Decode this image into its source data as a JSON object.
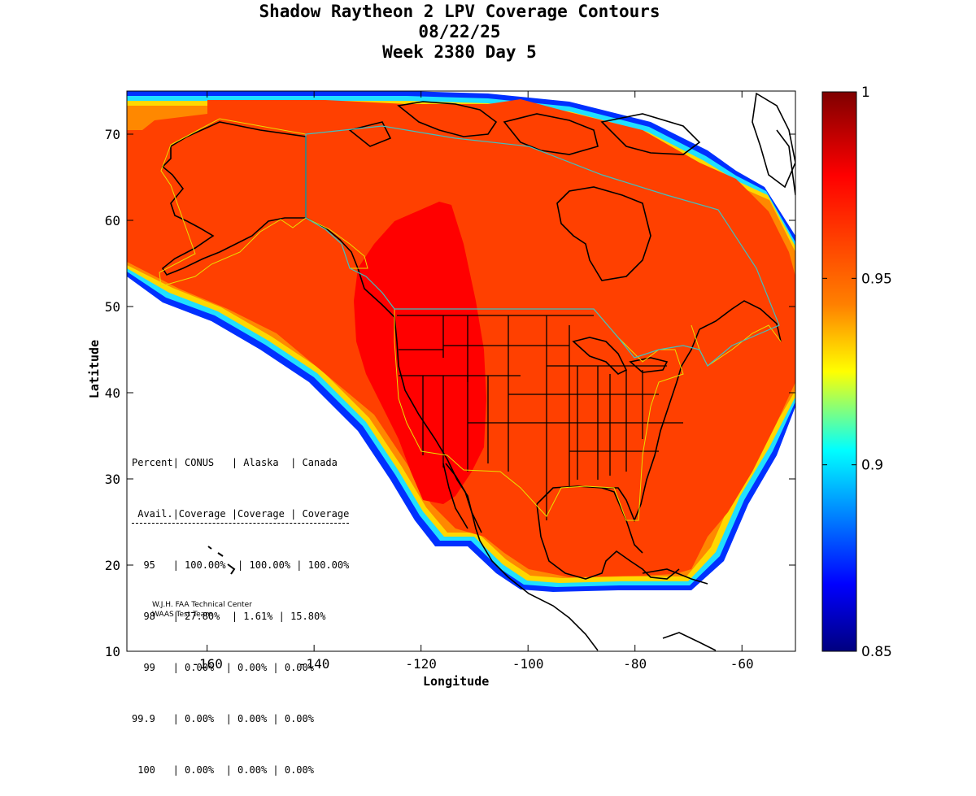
{
  "title": {
    "line1": "Shadow Raytheon 2 LPV Coverage Contours",
    "line2": "08/22/25",
    "line3": "Week 2380 Day 5"
  },
  "axes": {
    "xlabel": "Longitude",
    "ylabel": "Latitude",
    "x_ticks": [
      "-160",
      "-140",
      "-120",
      "-100",
      "-80",
      "-60"
    ],
    "y_ticks": [
      "10",
      "20",
      "30",
      "40",
      "50",
      "60",
      "70"
    ],
    "xlim": [
      -175,
      -50
    ],
    "ylim": [
      10,
      75
    ]
  },
  "colorbar": {
    "ticks": [
      "1",
      "0.95",
      "0.9",
      "0.85"
    ],
    "range": [
      0.85,
      1
    ],
    "colormap": "jet"
  },
  "coverage_table": {
    "header1": "Percent| CONUS   | Alaska  | Canada",
    "header2": " Avail.|Coverage |Coverage | Coverage",
    "rows": [
      "  95   | 100.00%  | 100.00% | 100.00%",
      "  98   | 27.80%  | 1.61% | 15.80%",
      "  99   | 0.00%  | 0.00% | 0.00%",
      "99.9   | 0.00%  | 0.00% | 0.00%",
      " 100   | 0.00%  | 0.00% | 0.00%"
    ]
  },
  "credit": {
    "line1": "W.J.H. FAA Technical Center",
    "line2": "WAAS Test Team"
  },
  "colors": {
    "coverage_main": "#ff4000",
    "coverage_high": "#ff0000",
    "edge_orange": "#ff8000",
    "edge_yellow": "#ffd000",
    "edge_cyan": "#00d0ff",
    "edge_blue": "#0040ff",
    "service_boundary": "#e8e000",
    "service_boundary_cyan": "#40c0c0"
  }
}
